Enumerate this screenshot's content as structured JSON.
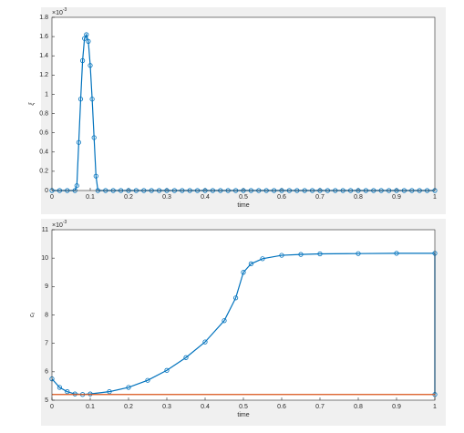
{
  "chart_data": [
    {
      "type": "line",
      "x_label": "time",
      "y_label": "ξ",
      "axis_multiplier": {
        "base": "×10",
        "exponent": "-3"
      },
      "xlim": [
        0,
        1
      ],
      "xticks": [
        0,
        0.1,
        0.2,
        0.3,
        0.4,
        0.5,
        0.6,
        0.7,
        0.8,
        0.9,
        1
      ],
      "ylim": [
        0,
        1.8
      ],
      "yticks": [
        0,
        0.2,
        0.4,
        0.6,
        0.8,
        1,
        1.2,
        1.4,
        1.6,
        1.8
      ],
      "series": [
        {
          "color": "#0072bd",
          "marker": "o",
          "x": [
            0,
            0.02,
            0.04,
            0.06,
            0.065,
            0.07,
            0.075,
            0.08,
            0.085,
            0.09,
            0.095,
            0.1,
            0.105,
            0.11,
            0.115,
            0.12,
            0.14,
            0.16,
            0.18,
            0.2,
            0.22,
            0.24,
            0.26,
            0.28,
            0.3,
            0.32,
            0.34,
            0.36,
            0.38,
            0.4,
            0.42,
            0.44,
            0.46,
            0.48,
            0.5,
            0.52,
            0.54,
            0.56,
            0.58,
            0.6,
            0.62,
            0.64,
            0.66,
            0.68,
            0.7,
            0.72,
            0.74,
            0.76,
            0.78,
            0.8,
            0.82,
            0.84,
            0.86,
            0.88,
            0.9,
            0.92,
            0.94,
            0.96,
            0.98,
            1
          ],
          "values": [
            0,
            0,
            0,
            0,
            0.05,
            0.5,
            0.95,
            1.35,
            1.58,
            1.62,
            1.55,
            1.3,
            0.95,
            0.55,
            0.15,
            0,
            0,
            0,
            0,
            0,
            0,
            0,
            0,
            0,
            0,
            0,
            0,
            0,
            0,
            0,
            0,
            0,
            0,
            0,
            0,
            0,
            0,
            0,
            0,
            0,
            0,
            0,
            0,
            0,
            0,
            0,
            0,
            0,
            0,
            0,
            0,
            0,
            0,
            0,
            0,
            0,
            0,
            0,
            0,
            0
          ]
        }
      ]
    },
    {
      "type": "line",
      "x_label": "time",
      "y_label": "c",
      "y_label_sub": "t",
      "axis_multiplier": {
        "base": "×10",
        "exponent": "-3"
      },
      "xlim": [
        0,
        1
      ],
      "xticks": [
        0,
        0.1,
        0.2,
        0.3,
        0.4,
        0.5,
        0.6,
        0.7,
        0.8,
        0.9,
        1
      ],
      "ylim": [
        5,
        11
      ],
      "yticks": [
        5,
        6,
        7,
        8,
        9,
        10,
        11
      ],
      "series": [
        {
          "color": "#0072bd",
          "marker": "o",
          "x": [
            0,
            0.02,
            0.04,
            0.06,
            0.08,
            0.1,
            0.15,
            0.2,
            0.25,
            0.3,
            0.35,
            0.4,
            0.45,
            0.48,
            0.5,
            0.52,
            0.55,
            0.6,
            0.65,
            0.7,
            0.8,
            0.9,
            1,
            1
          ],
          "values": [
            5.75,
            5.45,
            5.3,
            5.22,
            5.2,
            5.22,
            5.3,
            5.45,
            5.7,
            6.05,
            6.5,
            7.05,
            7.8,
            8.6,
            9.5,
            9.8,
            9.98,
            10.1,
            10.13,
            10.15,
            10.16,
            10.17,
            10.17,
            5.2
          ]
        },
        {
          "color": "#d95319",
          "marker": "none",
          "x": [
            0,
            1
          ],
          "values": [
            5.2,
            5.2
          ]
        }
      ]
    }
  ]
}
